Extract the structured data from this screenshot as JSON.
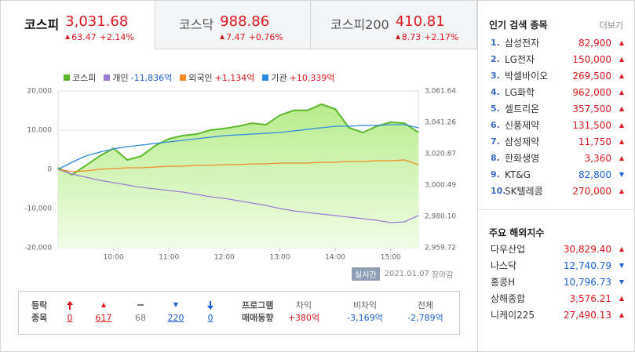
{
  "tabs": [
    {
      "name": "코스피",
      "value": "3,031.68",
      "change": "63.47",
      "rate": "+2.14%",
      "direction": "up",
      "active": true
    },
    {
      "name": "코스닥",
      "value": "988.86",
      "change": "7.47",
      "rate": "+0.76%",
      "direction": "up",
      "active": false
    },
    {
      "name": "코스피200",
      "value": "410.81",
      "change": "8.73",
      "rate": "+2.17%",
      "direction": "up",
      "active": false
    }
  ],
  "chart_data": {
    "type": "line",
    "x": [
      540,
      555,
      570,
      585,
      600,
      615,
      630,
      645,
      660,
      675,
      690,
      705,
      720,
      735,
      750,
      765,
      780,
      795,
      810,
      825,
      840,
      855,
      870,
      885,
      900,
      915,
      930
    ],
    "xlim": [
      540,
      930
    ],
    "xticks": [
      {
        "value": 600,
        "label": "10:00"
      },
      {
        "value": 660,
        "label": "11:00"
      },
      {
        "value": 720,
        "label": "12:00"
      },
      {
        "value": 780,
        "label": "13:00"
      },
      {
        "value": 840,
        "label": "14:00"
      },
      {
        "value": 900,
        "label": "15:00"
      }
    ],
    "ylim": [
      -20000,
      20000
    ],
    "yticks": [
      {
        "value": 20000,
        "label": "20,000"
      },
      {
        "value": 10000,
        "label": "10,000"
      },
      0,
      {
        "value": -10000,
        "label": "-10,000"
      },
      {
        "value": -20000,
        "label": "-20,000"
      }
    ],
    "y2lim": [
      2959.72,
      3061.64
    ],
    "y2ticks": [
      {
        "value": 3061.64,
        "label": "3,061.64"
      },
      {
        "value": 3041.26,
        "label": "3,041.26"
      },
      {
        "value": 3020.87,
        "label": "3,020.87"
      },
      {
        "value": 3000.49,
        "label": "3,000.49"
      },
      {
        "value": 2980.1,
        "label": "2,980.10"
      },
      {
        "value": 2959.72,
        "label": "2,959.72"
      }
    ],
    "grid": true,
    "series": [
      {
        "name": "코스피",
        "color": "#5cb82e",
        "axis": "y2",
        "fill": true,
        "values": [
          3011.7,
          3007.1,
          3013.2,
          3019.3,
          3024.4,
          3016.8,
          3019.3,
          3026.0,
          3030.5,
          3032.6,
          3033.6,
          3036.2,
          3037.2,
          3038.7,
          3040.7,
          3039.7,
          3045.8,
          3049.0,
          3049.0,
          3053.0,
          3049.9,
          3037.7,
          3034.6,
          3038.7,
          3041.3,
          3040.7,
          3034.6
        ]
      },
      {
        "name": "개인",
        "legend_value": "-11,836억",
        "color": "#9d7ad6",
        "values": [
          0,
          -1200,
          -2000,
          -2800,
          -3400,
          -4000,
          -4600,
          -5000,
          -5400,
          -5800,
          -6400,
          -7000,
          -7400,
          -8000,
          -8600,
          -9200,
          -10000,
          -10600,
          -11000,
          -11400,
          -11800,
          -12200,
          -12600,
          -13000,
          -13600,
          -13400,
          -11800
        ]
      },
      {
        "name": "외국인",
        "legend_value": "+1,134억",
        "color": "#f08a24",
        "values": [
          0,
          -600,
          -400,
          0,
          200,
          400,
          400,
          600,
          800,
          800,
          1000,
          1000,
          1200,
          1200,
          1400,
          1400,
          1600,
          1600,
          1600,
          1800,
          1800,
          2000,
          2000,
          2200,
          2200,
          2400,
          1200
        ]
      },
      {
        "name": "기관",
        "legend_value": "+10,339억",
        "color": "#2c8ae0",
        "values": [
          0,
          1800,
          3400,
          4400,
          5200,
          5800,
          6200,
          6600,
          7000,
          7400,
          7800,
          8200,
          8600,
          8800,
          9000,
          9200,
          9400,
          9800,
          10200,
          10600,
          11000,
          11000,
          11200,
          11200,
          11400,
          11400,
          10600
        ]
      }
    ]
  },
  "status": {
    "badge": "실시간",
    "date": "2021.01.07",
    "state": "장마감"
  },
  "breadth": {
    "title_lines": [
      "등락",
      "종목"
    ],
    "items": [
      {
        "value": "0",
        "kind": "upper-limit"
      },
      {
        "value": "617",
        "kind": "up"
      },
      {
        "value": "68",
        "kind": "flat"
      },
      {
        "value": "220",
        "kind": "down"
      },
      {
        "value": "0",
        "kind": "lower-limit"
      }
    ]
  },
  "program": {
    "title_lines": [
      "프로그램",
      "매매동향"
    ],
    "items": [
      {
        "label": "차익",
        "value": "+380억"
      },
      {
        "label": "비차익",
        "value": "-3,169억"
      },
      {
        "label": "전체",
        "value": "-2,789억"
      }
    ]
  },
  "popular": {
    "title": "인기 검색 종목",
    "more": "더보기",
    "items": [
      {
        "rank": "1.",
        "name": "삼성전자",
        "price": "82,900",
        "direction": "up"
      },
      {
        "rank": "2.",
        "name": "LG전자",
        "price": "150,000",
        "direction": "up"
      },
      {
        "rank": "3.",
        "name": "박셀바이오",
        "price": "269,500",
        "direction": "up"
      },
      {
        "rank": "4.",
        "name": "LG화학",
        "price": "962,000",
        "direction": "up"
      },
      {
        "rank": "5.",
        "name": "셀트리온",
        "price": "357,500",
        "direction": "up"
      },
      {
        "rank": "6.",
        "name": "신풍제약",
        "price": "131,500",
        "direction": "up"
      },
      {
        "rank": "7.",
        "name": "삼성제약",
        "price": "11,750",
        "direction": "up"
      },
      {
        "rank": "8.",
        "name": "한화생명",
        "price": "3,360",
        "direction": "up"
      },
      {
        "rank": "9.",
        "name": "KT&G",
        "price": "82,800",
        "direction": "down"
      },
      {
        "rank": "10.",
        "name": "SK텔레콤",
        "price": "270,000",
        "direction": "up"
      }
    ]
  },
  "world": {
    "title": "주요 해외지수",
    "items": [
      {
        "name": "다우산업",
        "price": "30,829.40",
        "direction": "up"
      },
      {
        "name": "나스닥",
        "price": "12,740.79",
        "direction": "down"
      },
      {
        "name": "홍콩H",
        "price": "10,796.73",
        "direction": "down"
      },
      {
        "name": "상해종합",
        "price": "3,576.21",
        "direction": "up"
      },
      {
        "name": "니케이225",
        "price": "27,490.13",
        "direction": "up"
      }
    ]
  }
}
